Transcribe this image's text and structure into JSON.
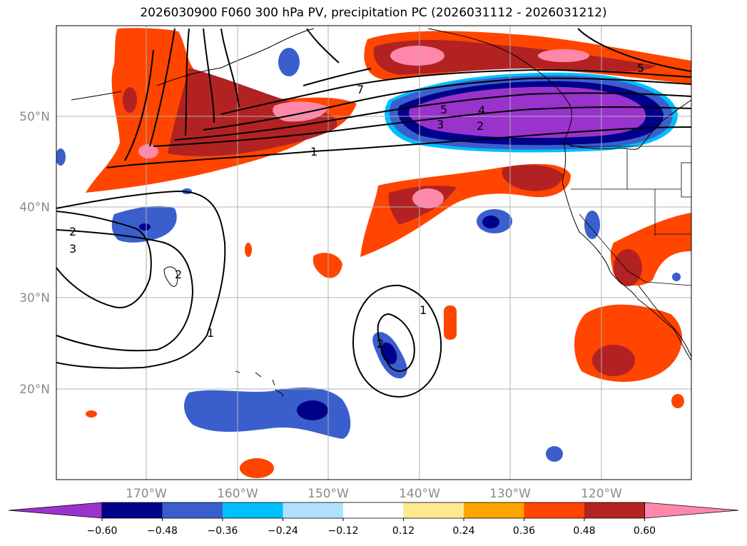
{
  "title": "2026030900 F060 300 hPa PV, precipitation PC (2026031112 - 2026031212)",
  "lat_labels": [
    "50°N",
    "40°N",
    "30°N",
    "20°N"
  ],
  "lon_labels": [
    "170°W",
    "160°W",
    "150°W",
    "140°W",
    "130°W",
    "120°W"
  ],
  "colorbar": {
    "colors": [
      "#9933cc",
      "#00008b",
      "#3a5fcd",
      "#00bfff",
      "#b0e2ff",
      "#ffffff",
      "#ffe98f",
      "#ffa500",
      "#ff4500",
      "#b22222",
      "#ff88aa"
    ],
    "ticks": [
      "−0.60",
      "−0.48",
      "−0.36",
      "−0.24",
      "−0.12",
      "0.12",
      "0.24",
      "0.36",
      "0.48",
      "0.60"
    ]
  },
  "contour_labels": [
    "7",
    "5",
    "4",
    "3",
    "2",
    "1",
    "5",
    "2",
    "3",
    "2",
    "1",
    "2",
    "1"
  ],
  "shading_colors": {
    "neg_strong": "#9933cc",
    "neg_dark": "#00008b",
    "neg_mid": "#3a5fcd",
    "neg_light": "#00bfff",
    "pos_orange": "#ff4500",
    "pos_red": "#b22222",
    "pos_pink": "#ff88aa",
    "pos_yellow": "#ffe98f"
  }
}
